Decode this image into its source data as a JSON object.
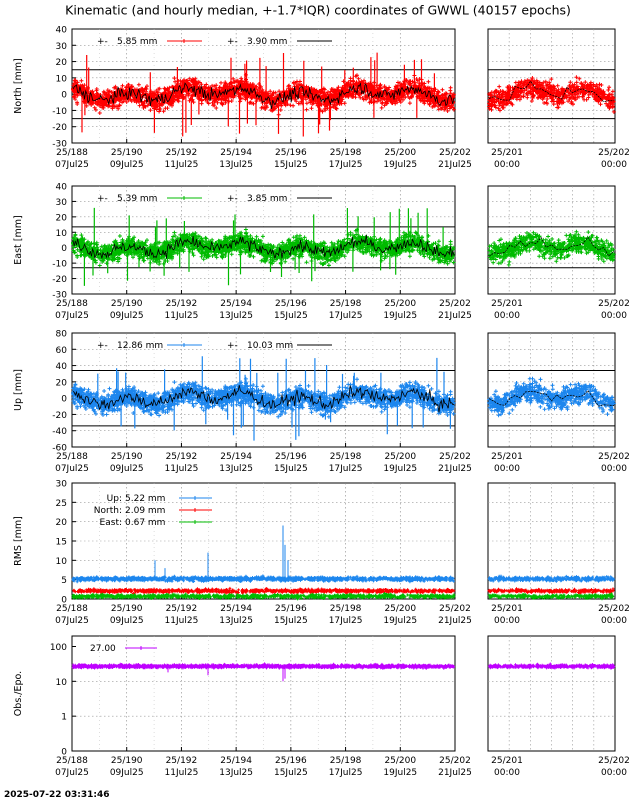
{
  "title": "Kinematic (and hourly median, +-1.7*IQR) coordinates of GWWL (40157 epochs)",
  "timestamp": "2025-07-22 03:31:46",
  "colors": {
    "north": "#ff0000",
    "east": "#00bb00",
    "up": "#1c86ee",
    "obs": "#bf00ff",
    "median": "#000000"
  },
  "chart_data": [
    {
      "type": "scatter",
      "panel": "north",
      "ylabel": "North [mm]",
      "ylim": [
        -30,
        40
      ],
      "yticks": [
        -30,
        -20,
        -10,
        0,
        10,
        20,
        30,
        40
      ],
      "threshold_lines": [
        15,
        -15
      ],
      "grid": true,
      "series": [
        {
          "name": "5.85 mm",
          "color": "#ff0000",
          "kind": "points"
        },
        {
          "name": "3.90 mm",
          "color": "#000000",
          "kind": "line"
        }
      ]
    },
    {
      "type": "scatter",
      "panel": "east",
      "ylabel": "East [mm]",
      "ylim": [
        -30,
        40
      ],
      "yticks": [
        -30,
        -20,
        -10,
        0,
        10,
        20,
        30,
        40
      ],
      "threshold_lines": [
        13.5,
        -13
      ],
      "grid": true,
      "series": [
        {
          "name": "5.39 mm",
          "color": "#00bb00",
          "kind": "points"
        },
        {
          "name": "3.85 mm",
          "color": "#000000",
          "kind": "line"
        }
      ]
    },
    {
      "type": "scatter",
      "panel": "up",
      "ylabel": "Up [mm]",
      "ylim": [
        -60,
        80
      ],
      "yticks": [
        -60,
        -40,
        -20,
        0,
        20,
        40,
        60,
        80
      ],
      "threshold_lines": [
        34,
        -34
      ],
      "grid": true,
      "series": [
        {
          "name": "12.86 mm",
          "color": "#1c86ee",
          "kind": "points"
        },
        {
          "name": "10.03 mm",
          "color": "#000000",
          "kind": "line"
        }
      ]
    },
    {
      "type": "scatter",
      "panel": "rms",
      "ylabel": "RMS [mm]",
      "ylim": [
        0,
        30
      ],
      "yticks": [
        0,
        5,
        10,
        15,
        20,
        25,
        30
      ],
      "grid": true,
      "series": [
        {
          "name": "Up:",
          "value": "5.22 mm",
          "color": "#1c86ee",
          "level": 5.2
        },
        {
          "name": "North:",
          "value": "2.09 mm",
          "color": "#ff0000",
          "level": 2.1
        },
        {
          "name": "East:",
          "value": "0.67 mm",
          "color": "#00bb00",
          "level": 0.7
        }
      ]
    },
    {
      "type": "scatter",
      "panel": "obs",
      "ylabel": "Obs./Epo.",
      "yscale": "log",
      "ylim": [
        0.1,
        200
      ],
      "yticks": [
        0.1,
        1,
        10,
        100
      ],
      "ytick_labels": [
        "0",
        "1",
        "10",
        "100"
      ],
      "grid": true,
      "series": [
        {
          "name": "27.00",
          "color": "#bf00ff",
          "level": 27
        }
      ]
    }
  ],
  "x_axis": {
    "main": {
      "range": [
        "2025-07-07",
        "2025-07-21"
      ],
      "tick_doy": [
        "25/188",
        "25/190",
        "25/192",
        "25/194",
        "25/196",
        "25/198",
        "25/200",
        "25/202"
      ],
      "tick_date": [
        "07Jul25",
        "09Jul25",
        "11Jul25",
        "13Jul25",
        "15Jul25",
        "17Jul25",
        "19Jul25",
        "21Jul25"
      ]
    },
    "zoom": {
      "range": [
        "2025-07-20 00:00",
        "2025-07-21 00:00"
      ],
      "tick_doy": [
        "25/201",
        "25/202"
      ],
      "tick_time": [
        "00:00",
        "00:00"
      ]
    }
  }
}
